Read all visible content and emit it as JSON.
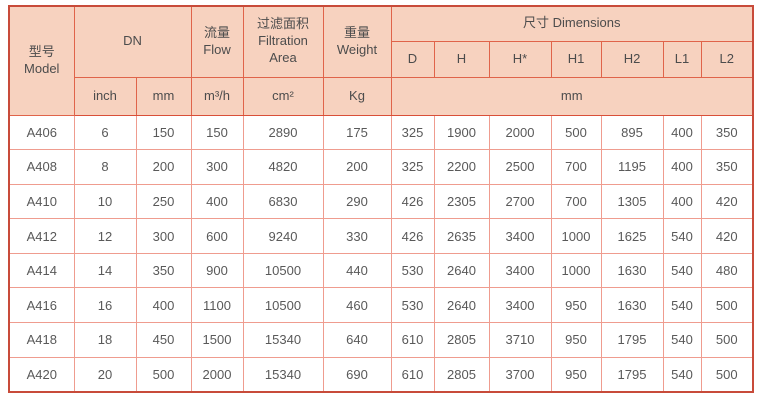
{
  "table": {
    "header": {
      "model_zh": "型号",
      "model_en": "Model",
      "dn": "DN",
      "flow_zh": "流量",
      "flow_en": "Flow",
      "filtration_zh": "过滤面积",
      "filtration_en1": "Filtration",
      "filtration_en2": "Area",
      "weight_zh": "重量",
      "weight_en": "Weight",
      "dimensions": "尺寸 Dimensions",
      "dim_cols": [
        "D",
        "H",
        "H*",
        "H1",
        "H2",
        "L1",
        "L2"
      ],
      "units": {
        "inch": "inch",
        "mm": "mm",
        "flow": "m³/h",
        "area": "cm²",
        "weight": "Kg",
        "dim_mm": "mm"
      }
    },
    "columns": [
      "Model",
      "inch",
      "mm",
      "m³/h",
      "cm²",
      "Kg",
      "D",
      "H",
      "H*",
      "H1",
      "H2",
      "L1",
      "L2"
    ],
    "rows": [
      [
        "A406",
        "6",
        "150",
        "150",
        "2890",
        "175",
        "325",
        "1900",
        "2000",
        "500",
        "895",
        "400",
        "350"
      ],
      [
        "A408",
        "8",
        "200",
        "300",
        "4820",
        "200",
        "325",
        "2200",
        "2500",
        "700",
        "1195",
        "400",
        "350"
      ],
      [
        "A410",
        "10",
        "250",
        "400",
        "6830",
        "290",
        "426",
        "2305",
        "2700",
        "700",
        "1305",
        "400",
        "420"
      ],
      [
        "A412",
        "12",
        "300",
        "600",
        "9240",
        "330",
        "426",
        "2635",
        "3400",
        "1000",
        "1625",
        "540",
        "420"
      ],
      [
        "A414",
        "14",
        "350",
        "900",
        "10500",
        "440",
        "530",
        "2640",
        "3400",
        "1000",
        "1630",
        "540",
        "480"
      ],
      [
        "A416",
        "16",
        "400",
        "1100",
        "10500",
        "460",
        "530",
        "2640",
        "3400",
        "950",
        "1630",
        "540",
        "500"
      ],
      [
        "A418",
        "18",
        "450",
        "1500",
        "15340",
        "640",
        "610",
        "2805",
        "3710",
        "950",
        "1795",
        "540",
        "500"
      ],
      [
        "A420",
        "20",
        "500",
        "2000",
        "15340",
        "690",
        "610",
        "2805",
        "3700",
        "950",
        "1795",
        "540",
        "500"
      ]
    ],
    "colors": {
      "header_bg": "#f7d2bf",
      "outer_border": "#c84b3a",
      "header_border": "#e0644a",
      "data_border": "#ef9c8f",
      "header_text": "#4c4c4c",
      "data_text": "#595959"
    }
  }
}
